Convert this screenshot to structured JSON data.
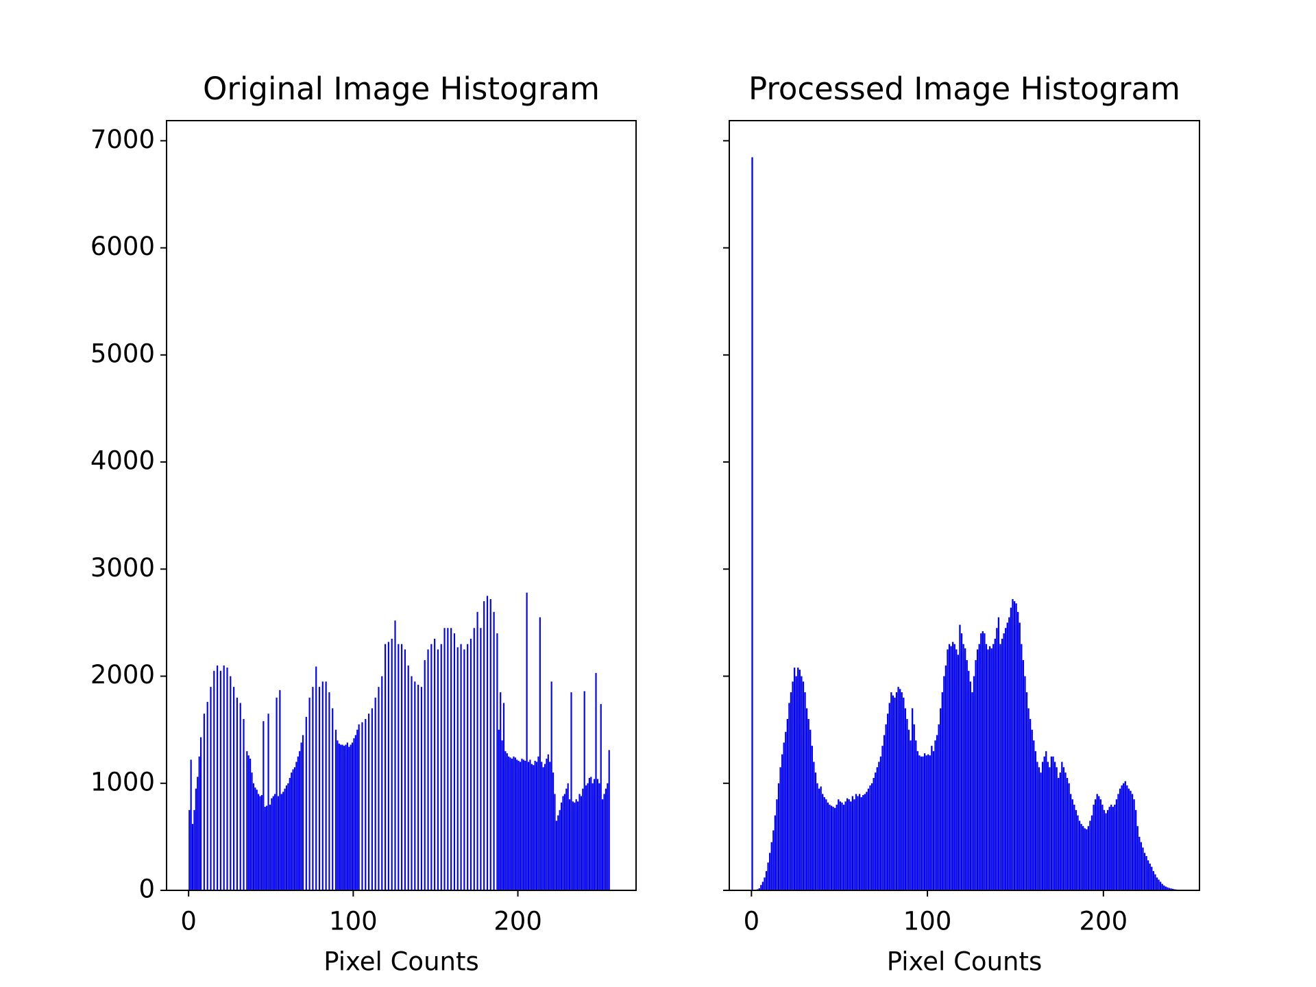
{
  "chart_data": [
    {
      "type": "histogram",
      "title": "Original Image Histogram",
      "xlabel": "Pixel Counts",
      "color": "#0000ff",
      "xlim": [
        -13.4,
        271.8
      ],
      "xticks": [
        0,
        100,
        200
      ],
      "ylim": [
        0,
        7188
      ],
      "yticks": [
        0,
        1000,
        2000,
        3000,
        4000,
        5000,
        6000,
        7000
      ],
      "show_ytick_labels": true,
      "bins": [
        0,
        1,
        2,
        3,
        4,
        5,
        6,
        7,
        8,
        9,
        10,
        11,
        12,
        13,
        14,
        15,
        16,
        17,
        18,
        19,
        20,
        21,
        22,
        23,
        24,
        25,
        26,
        27,
        28,
        29,
        30,
        31,
        32,
        33,
        34,
        35,
        36,
        37,
        38,
        39,
        40,
        41,
        42,
        43,
        44,
        45,
        46,
        47,
        48,
        49,
        50,
        51,
        52,
        53,
        54,
        55,
        56,
        57,
        58,
        59,
        60,
        61,
        62,
        63,
        64,
        65,
        66,
        67,
        68,
        69,
        70,
        71,
        72,
        73,
        74,
        75,
        76,
        77,
        78,
        79,
        80,
        81,
        82,
        83,
        84,
        85,
        86,
        87,
        88,
        89,
        90,
        91,
        92,
        93,
        94,
        95,
        96,
        97,
        98,
        99,
        100,
        101,
        102,
        103,
        104,
        105,
        106,
        107,
        108,
        109,
        110,
        111,
        112,
        113,
        114,
        115,
        116,
        117,
        118,
        119,
        120,
        121,
        122,
        123,
        124,
        125,
        126,
        127,
        128,
        129,
        130,
        131,
        132,
        133,
        134,
        135,
        136,
        137,
        138,
        139,
        140,
        141,
        142,
        143,
        144,
        145,
        146,
        147,
        148,
        149,
        150,
        151,
        152,
        153,
        154,
        155,
        156,
        157,
        158,
        159,
        160,
        161,
        162,
        163,
        164,
        165,
        166,
        167,
        168,
        169,
        170,
        171,
        172,
        173,
        174,
        175,
        176,
        177,
        178,
        179,
        180,
        181,
        182,
        183,
        184,
        185,
        186,
        187,
        188,
        189,
        190,
        191,
        192,
        193,
        194,
        195,
        196,
        197,
        198,
        199,
        200,
        201,
        202,
        203,
        204,
        205,
        206,
        207,
        208,
        209,
        210,
        211,
        212,
        213,
        214,
        215,
        216,
        217,
        218,
        219,
        220,
        221,
        222,
        223,
        224,
        225,
        226,
        227,
        228,
        229,
        230,
        231,
        232,
        233,
        234,
        235,
        236,
        237,
        238,
        239,
        240,
        241,
        242,
        243,
        244,
        245,
        246,
        247,
        248,
        249,
        250,
        251,
        252,
        253,
        254,
        255,
        256
      ],
      "values": [
        750,
        1220,
        620,
        750,
        950,
        1060,
        1250,
        1430,
        0,
        1650,
        0,
        1760,
        0,
        1900,
        0,
        2050,
        0,
        2100,
        0,
        2050,
        0,
        2100,
        0,
        2080,
        0,
        2000,
        0,
        1900,
        0,
        1800,
        0,
        1750,
        0,
        1600,
        0,
        1300,
        1260,
        1230,
        1100,
        1000,
        960,
        940,
        900,
        880,
        890,
        1580,
        780,
        790,
        1650,
        800,
        860,
        880,
        900,
        1800,
        880,
        1870,
        900,
        920,
        950,
        980,
        1000,
        1050,
        1100,
        1130,
        1150,
        1200,
        1250,
        1300,
        1380,
        1450,
        0,
        1620,
        0,
        1800,
        0,
        1900,
        0,
        2090,
        0,
        1900,
        0,
        1950,
        0,
        1950,
        0,
        1850,
        0,
        1700,
        0,
        1500,
        1400,
        1370,
        1360,
        1360,
        1350,
        1360,
        1380,
        1340,
        1360,
        1380,
        1420,
        1450,
        1500,
        1550,
        0,
        1570,
        0,
        1600,
        0,
        1650,
        0,
        1700,
        0,
        1800,
        0,
        1900,
        0,
        2000,
        0,
        2300,
        0,
        2320,
        0,
        2350,
        0,
        2520,
        0,
        2300,
        0,
        2300,
        0,
        2250,
        0,
        2100,
        0,
        2000,
        0,
        1950,
        0,
        1920,
        0,
        1900,
        0,
        2150,
        0,
        2250,
        0,
        2300,
        0,
        2350,
        0,
        2250,
        0,
        2300,
        0,
        2450,
        0,
        2450,
        0,
        2450,
        0,
        2400,
        0,
        2270,
        0,
        2300,
        0,
        2250,
        0,
        2300,
        0,
        2350,
        0,
        2450,
        0,
        2600,
        0,
        2450,
        0,
        2700,
        0,
        2750,
        0,
        2720,
        0,
        2600,
        0,
        2400,
        1500,
        1850,
        1400,
        1750,
        1300,
        1280,
        1250,
        1240,
        1230,
        1250,
        1240,
        1220,
        1210,
        1200,
        1230,
        1220,
        1210,
        2780,
        1200,
        1220,
        1180,
        1170,
        1210,
        1200,
        1250,
        2550,
        1200,
        1150,
        1180,
        1230,
        1270,
        1200,
        1950,
        1100,
        900,
        650,
        700,
        750,
        820,
        880,
        900,
        950,
        1000,
        850,
        1850,
        830,
        820,
        850,
        830,
        900,
        880,
        950,
        1860,
        980,
        1000,
        1050,
        1060,
        1000,
        1040,
        2030,
        1040,
        1000,
        1740,
        850,
        900,
        950,
        1000,
        1310
      ]
    },
    {
      "type": "histogram",
      "title": "Processed Image Histogram",
      "xlabel": "Pixel Counts",
      "color": "#0000ff",
      "xlim": [
        -12.6,
        254.6
      ],
      "xticks": [
        0,
        100,
        200
      ],
      "ylim": [
        0,
        7188
      ],
      "yticks": [
        0,
        1000,
        2000,
        3000,
        4000,
        5000,
        6000,
        7000
      ],
      "show_ytick_labels": false,
      "bins": [
        0,
        1,
        2,
        3,
        4,
        5,
        6,
        7,
        8,
        9,
        10,
        11,
        12,
        13,
        14,
        15,
        16,
        17,
        18,
        19,
        20,
        21,
        22,
        23,
        24,
        25,
        26,
        27,
        28,
        29,
        30,
        31,
        32,
        33,
        34,
        35,
        36,
        37,
        38,
        39,
        40,
        41,
        42,
        43,
        44,
        45,
        46,
        47,
        48,
        49,
        50,
        51,
        52,
        53,
        54,
        55,
        56,
        57,
        58,
        59,
        60,
        61,
        62,
        63,
        64,
        65,
        66,
        67,
        68,
        69,
        70,
        71,
        72,
        73,
        74,
        75,
        76,
        77,
        78,
        79,
        80,
        81,
        82,
        83,
        84,
        85,
        86,
        87,
        88,
        89,
        90,
        91,
        92,
        93,
        94,
        95,
        96,
        97,
        98,
        99,
        100,
        101,
        102,
        103,
        104,
        105,
        106,
        107,
        108,
        109,
        110,
        111,
        112,
        113,
        114,
        115,
        116,
        117,
        118,
        119,
        120,
        121,
        122,
        123,
        124,
        125,
        126,
        127,
        128,
        129,
        130,
        131,
        132,
        133,
        134,
        135,
        136,
        137,
        138,
        139,
        140,
        141,
        142,
        143,
        144,
        145,
        146,
        147,
        148,
        149,
        150,
        151,
        152,
        153,
        154,
        155,
        156,
        157,
        158,
        159,
        160,
        161,
        162,
        163,
        164,
        165,
        166,
        167,
        168,
        169,
        170,
        171,
        172,
        173,
        174,
        175,
        176,
        177,
        178,
        179,
        180,
        181,
        182,
        183,
        184,
        185,
        186,
        187,
        188,
        189,
        190,
        191,
        192,
        193,
        194,
        195,
        196,
        197,
        198,
        199,
        200,
        201,
        202,
        203,
        204,
        205,
        206,
        207,
        208,
        209,
        210,
        211,
        212,
        213,
        214,
        215,
        216,
        217,
        218,
        219,
        220,
        221,
        222,
        223,
        224,
        225,
        226,
        227,
        228,
        229,
        230,
        231,
        232,
        233,
        234,
        235,
        236,
        237,
        238,
        239,
        240,
        241,
        242,
        243,
        244,
        245,
        246,
        247,
        248,
        249,
        250,
        251,
        252,
        253,
        254,
        255,
        256
      ],
      "values": [
        6846,
        0,
        5,
        10,
        20,
        50,
        80,
        120,
        180,
        260,
        350,
        450,
        560,
        700,
        850,
        1000,
        1150,
        1270,
        1380,
        1480,
        1600,
        1750,
        1850,
        1950,
        2080,
        2000,
        2080,
        2060,
        2000,
        1950,
        1850,
        1700,
        1600,
        1500,
        1350,
        1200,
        1100,
        1000,
        950,
        970,
        900,
        870,
        850,
        820,
        800,
        790,
        780,
        770,
        800,
        850,
        830,
        820,
        800,
        830,
        860,
        850,
        830,
        880,
        850,
        900,
        880,
        900,
        870,
        890,
        900,
        920,
        950,
        980,
        1000,
        1050,
        1100,
        1150,
        1200,
        1250,
        1350,
        1450,
        1550,
        1650,
        1750,
        1850,
        1820,
        1800,
        1850,
        1900,
        1880,
        1850,
        1800,
        1700,
        1600,
        1500,
        1400,
        1700,
        1550,
        1400,
        1300,
        1260,
        1250,
        1250,
        1280,
        1260,
        1270,
        1260,
        1350,
        1300,
        1400,
        1450,
        1550,
        1700,
        1850,
        2000,
        2100,
        2250,
        2300,
        2280,
        2320,
        2300,
        2250,
        2200,
        2480,
        2400,
        2300,
        2260,
        2150,
        2050,
        1950,
        1850,
        2000,
        2150,
        2250,
        2300,
        2400,
        2420,
        2400,
        2300,
        2250,
        2280,
        2260,
        2300,
        2350,
        2450,
        2550,
        2300,
        2350,
        2400,
        2450,
        2500,
        2550,
        2640,
        2720,
        2700,
        2680,
        2600,
        2500,
        2300,
        2150,
        2000,
        1850,
        1700,
        1600,
        1500,
        1400,
        1300,
        1200,
        1150,
        1100,
        1200,
        1250,
        1300,
        1200,
        1150,
        1250,
        1250,
        1200,
        1150,
        1050,
        1100,
        1200,
        1150,
        1100,
        1050,
        1000,
        900,
        850,
        800,
        750,
        700,
        650,
        620,
        600,
        580,
        570,
        600,
        650,
        700,
        800,
        850,
        900,
        880,
        850,
        800,
        750,
        720,
        750,
        780,
        800,
        780,
        800,
        850,
        900,
        950,
        980,
        1000,
        1020,
        980,
        950,
        930,
        900,
        850,
        750,
        600,
        500,
        450,
        400,
        350,
        320,
        280,
        250,
        220,
        180,
        150,
        120,
        100,
        80,
        60,
        45,
        35,
        28,
        22,
        18,
        14,
        10,
        8,
        6,
        5,
        4,
        3,
        2,
        1,
        1,
        0,
        0,
        0,
        0,
        0,
        0,
        0
      ]
    }
  ]
}
